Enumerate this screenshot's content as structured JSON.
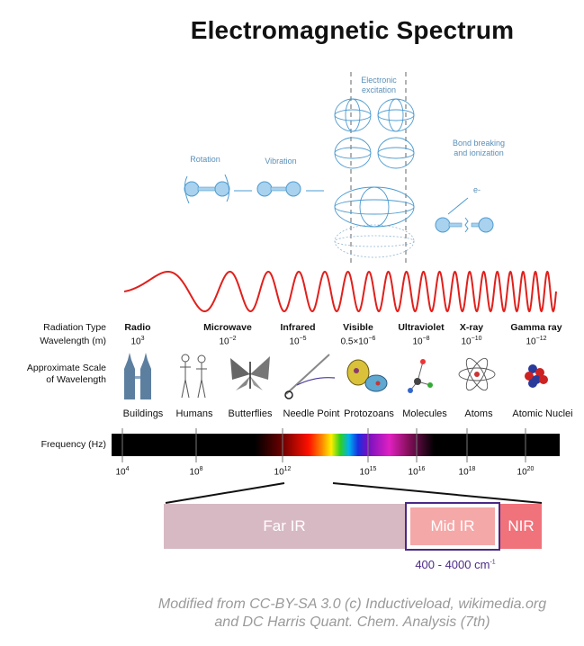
{
  "title": "Electromagnetic Spectrum",
  "transitions": {
    "rotation": "Rotation",
    "vibration": "Vibration",
    "electronic_1": "Electronic",
    "electronic_2": "excitation",
    "bond_1": "Bond breaking",
    "bond_2": "and ionization",
    "electron": "e-"
  },
  "labels": {
    "radiation_type": "Radiation Type",
    "wavelength": "Wavelength (m)",
    "scale_1": "Approximate Scale",
    "scale_2": "of Wavelength",
    "frequency": "Frequency (Hz)"
  },
  "radiation": [
    {
      "type": "Radio",
      "wl_base": "10",
      "wl_exp": "3"
    },
    {
      "type": "Microwave",
      "wl_base": "10",
      "wl_exp": "−2"
    },
    {
      "type": "Infrared",
      "wl_base": "10",
      "wl_exp": "−5"
    },
    {
      "type": "Visible",
      "wl_base": "0.5×10",
      "wl_exp": "−6"
    },
    {
      "type": "Ultraviolet",
      "wl_base": "10",
      "wl_exp": "−8"
    },
    {
      "type": "X-ray",
      "wl_base": "10",
      "wl_exp": "−10"
    },
    {
      "type": "Gamma ray",
      "wl_base": "10",
      "wl_exp": "−12"
    }
  ],
  "scale_items": [
    "Buildings",
    "Humans",
    "Butterflies",
    "Needle Point",
    "Protozoans",
    "Molecules",
    "Atoms",
    "Atomic Nuclei"
  ],
  "frequencies": [
    {
      "base": "10",
      "exp": "4"
    },
    {
      "base": "10",
      "exp": "8"
    },
    {
      "base": "10",
      "exp": "12"
    },
    {
      "base": "10",
      "exp": "15"
    },
    {
      "base": "10",
      "exp": "16"
    },
    {
      "base": "10",
      "exp": "18"
    },
    {
      "base": "10",
      "exp": "20"
    }
  ],
  "ir_bands": {
    "far": "Far IR",
    "mid": "Mid IR",
    "near": "NIR",
    "mid_range": "400 - 4000 cm",
    "mid_range_exp": "-1"
  },
  "colors": {
    "wave": "#e0201c",
    "far_ir": "#d7b9c3",
    "mid_ir": "#f5a8a8",
    "nir": "#f0727b",
    "mid_box": "#4b2a86",
    "molecule": "#4e9bd0"
  },
  "credit": {
    "line1": "Modified from CC-BY-SA 3.0 (c) Inductiveload, wikimedia.org",
    "line2": "and DC Harris Quant. Chem. Analysis (7th)"
  }
}
